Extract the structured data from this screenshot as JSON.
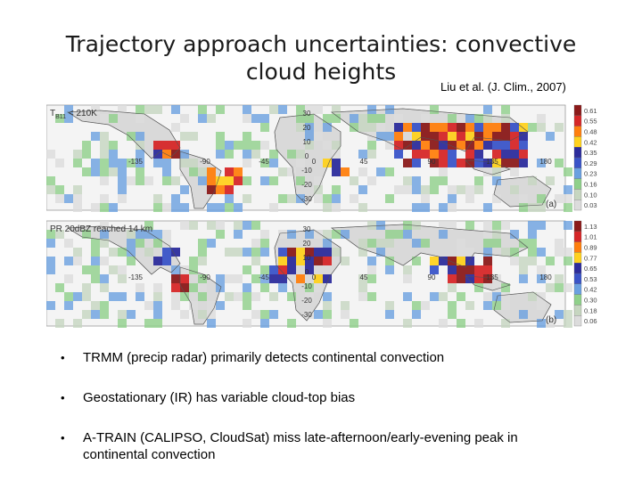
{
  "slide": {
    "title_line1": "Trajectory approach uncertainties: convective",
    "title_line2": "cloud heights",
    "citation": "Liu et al. (J. Clim., 2007)"
  },
  "figure": {
    "panels": [
      {
        "id": "a",
        "label": "T",
        "label_sub": "B11",
        "label_rest": " < 210K",
        "panel_tag": "(a)",
        "lon_ticks": [
          "-135",
          "-90",
          "-45",
          "0",
          "45",
          "90",
          "135",
          "180"
        ],
        "lat_ticks": [
          "30",
          "20",
          "10",
          "0",
          "-10",
          "-20",
          "-30"
        ],
        "colorbar_values": [
          "0.61",
          "0.55",
          "0.48",
          "0.42",
          "0.35",
          "0.29",
          "0.23",
          "0.16",
          "0.10",
          "0.03"
        ],
        "colorbar_colors": [
          "#8b1a1a",
          "#d62728",
          "#ff7f0e",
          "#ffd21f",
          "#2c2c9c",
          "#3a54c8",
          "#6aa0e0",
          "#8fd08a",
          "#c6d6c0",
          "#dcdcdc"
        ]
      },
      {
        "id": "b",
        "label": "PR 20dBZ reached 14 km",
        "label_sub": "",
        "label_rest": "",
        "panel_tag": "(b)",
        "lon_ticks": [
          "-135",
          "-90",
          "-45",
          "0",
          "45",
          "90",
          "135",
          "180"
        ],
        "lat_ticks": [
          "30",
          "20",
          "10",
          "0",
          "-10",
          "-20",
          "-30"
        ],
        "colorbar_values": [
          "1.13",
          "1.01",
          "0.89",
          "0.77",
          "0.65",
          "0.53",
          "0.42",
          "0.30",
          "0.18",
          "0.06"
        ],
        "colorbar_colors": [
          "#8b1a1a",
          "#d62728",
          "#ff7f0e",
          "#ffd21f",
          "#2c2c9c",
          "#3a54c8",
          "#6aa0e0",
          "#8fd08a",
          "#c6d6c0",
          "#dcdcdc"
        ]
      }
    ]
  },
  "bullets": [
    {
      "marker": "•",
      "text": "TRMM (precip radar) primarily detects continental convection"
    },
    {
      "marker": "•",
      "text": "Geostationary (IR) has variable cloud-top bias"
    },
    {
      "marker": "•",
      "text": "A-TRAIN (CALIPSO, CloudSat) miss late-afternoon/early-evening peak in continental convection"
    }
  ]
}
